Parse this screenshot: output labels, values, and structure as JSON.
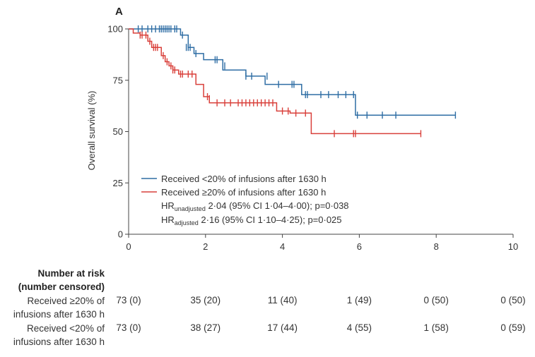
{
  "chart_data": {
    "type": "line",
    "panel_label": "A",
    "title": "",
    "xlabel": "",
    "ylabel": "Overall survival (%)",
    "xlim": [
      0,
      10
    ],
    "ylim": [
      0,
      100
    ],
    "xticks": [
      0,
      2,
      4,
      6,
      8,
      10
    ],
    "yticks": [
      0,
      25,
      50,
      75,
      100
    ],
    "x_tick_labels": [
      "0",
      "2",
      "4",
      "6",
      "8",
      "10"
    ],
    "y_tick_labels": [
      "0",
      "25",
      "50",
      "75",
      "100"
    ],
    "series": [
      {
        "name": "Received <20% of infusions after 1630 h",
        "color": "#2e6da4",
        "steps": [
          [
            0,
            100
          ],
          [
            1.35,
            97
          ],
          [
            1.55,
            91
          ],
          [
            1.7,
            88
          ],
          [
            1.95,
            85
          ],
          [
            2.45,
            80
          ],
          [
            3.05,
            77
          ],
          [
            3.55,
            73
          ],
          [
            4.5,
            68
          ],
          [
            5.9,
            58
          ],
          [
            8.5,
            58
          ]
        ],
        "censor": [
          [
            0.25,
            100
          ],
          [
            0.35,
            100
          ],
          [
            0.5,
            100
          ],
          [
            0.6,
            100
          ],
          [
            0.7,
            100
          ],
          [
            0.8,
            100
          ],
          [
            0.85,
            100
          ],
          [
            0.9,
            100
          ],
          [
            0.95,
            100
          ],
          [
            1.0,
            100
          ],
          [
            1.05,
            100
          ],
          [
            1.1,
            100
          ],
          [
            1.2,
            100
          ],
          [
            1.25,
            100
          ],
          [
            1.4,
            97
          ],
          [
            1.5,
            91
          ],
          [
            1.55,
            91
          ],
          [
            1.6,
            91
          ],
          [
            1.75,
            88
          ],
          [
            2.25,
            85
          ],
          [
            2.3,
            85
          ],
          [
            2.5,
            82
          ],
          [
            3.05,
            77
          ],
          [
            3.2,
            77
          ],
          [
            3.6,
            77
          ],
          [
            3.9,
            73
          ],
          [
            4.25,
            73
          ],
          [
            4.3,
            73
          ],
          [
            4.6,
            68
          ],
          [
            4.65,
            68
          ],
          [
            5.0,
            68
          ],
          [
            5.2,
            68
          ],
          [
            5.45,
            68
          ],
          [
            5.65,
            68
          ],
          [
            5.85,
            68
          ],
          [
            5.95,
            58
          ],
          [
            6.2,
            58
          ],
          [
            6.6,
            58
          ],
          [
            6.95,
            58
          ],
          [
            8.5,
            58
          ]
        ]
      },
      {
        "name": "Received ≥20% of infusions after 1630 h",
        "color": "#d9403b",
        "steps": [
          [
            0,
            100
          ],
          [
            0.12,
            98
          ],
          [
            0.3,
            97
          ],
          [
            0.5,
            94
          ],
          [
            0.6,
            91
          ],
          [
            0.85,
            87
          ],
          [
            0.95,
            84
          ],
          [
            1.05,
            82
          ],
          [
            1.15,
            80
          ],
          [
            1.3,
            78
          ],
          [
            1.75,
            73
          ],
          [
            1.95,
            67
          ],
          [
            2.1,
            64
          ],
          [
            3.85,
            60
          ],
          [
            4.2,
            59
          ],
          [
            4.75,
            49
          ],
          [
            7.6,
            49
          ]
        ],
        "censor": [
          [
            0.3,
            97
          ],
          [
            0.35,
            97
          ],
          [
            0.45,
            97
          ],
          [
            0.55,
            94
          ],
          [
            0.65,
            91
          ],
          [
            0.7,
            91
          ],
          [
            0.75,
            91
          ],
          [
            0.9,
            87
          ],
          [
            1.0,
            84
          ],
          [
            1.1,
            82
          ],
          [
            1.15,
            80
          ],
          [
            1.2,
            80
          ],
          [
            1.35,
            78
          ],
          [
            1.4,
            78
          ],
          [
            1.55,
            78
          ],
          [
            1.65,
            78
          ],
          [
            2.05,
            67
          ],
          [
            2.1,
            66
          ],
          [
            2.3,
            64
          ],
          [
            2.5,
            64
          ],
          [
            2.65,
            64
          ],
          [
            2.85,
            64
          ],
          [
            2.95,
            64
          ],
          [
            3.05,
            64
          ],
          [
            3.15,
            64
          ],
          [
            3.25,
            64
          ],
          [
            3.35,
            64
          ],
          [
            3.45,
            64
          ],
          [
            3.55,
            64
          ],
          [
            3.65,
            64
          ],
          [
            3.75,
            64
          ],
          [
            4.0,
            60
          ],
          [
            4.15,
            60
          ],
          [
            4.35,
            59
          ],
          [
            4.6,
            59
          ],
          [
            5.35,
            49
          ],
          [
            5.85,
            49
          ],
          [
            5.9,
            49
          ],
          [
            7.6,
            49
          ]
        ]
      }
    ],
    "legend": {
      "position": "bottom-left",
      "entries": [
        "Received <20% of infusions after 1630 h",
        "Received ≥20% of infusions after 1630 h"
      ]
    },
    "annotations": {
      "hr_unadj_prefix": "HR",
      "hr_unadj_sub": "unadjusted",
      "hr_unadj_text": " 2·04 (95% CI 1·04–4·00); p=0·038",
      "hr_adj_prefix": "HR",
      "hr_adj_sub": "adjusted",
      "hr_adj_text": " 2·16 (95% CI 1·10–4·25); p=0·025"
    }
  },
  "risk_table": {
    "heading_line1": "Number at risk",
    "heading_line2": "(number censored)",
    "rows": [
      {
        "label_line1": "Received ≥20% of",
        "label_line2": "infusions after 1630 h",
        "values": [
          "73 (0)",
          "35 (20)",
          "11 (40)",
          "1 (49)",
          "0 (50)",
          "0 (50)"
        ]
      },
      {
        "label_line1": "Received <20% of",
        "label_line2": "infusions after 1630 h",
        "values": [
          "73 (0)",
          "38 (27)",
          "17 (44)",
          "4 (55)",
          "1 (58)",
          "0 (59)"
        ]
      }
    ]
  }
}
